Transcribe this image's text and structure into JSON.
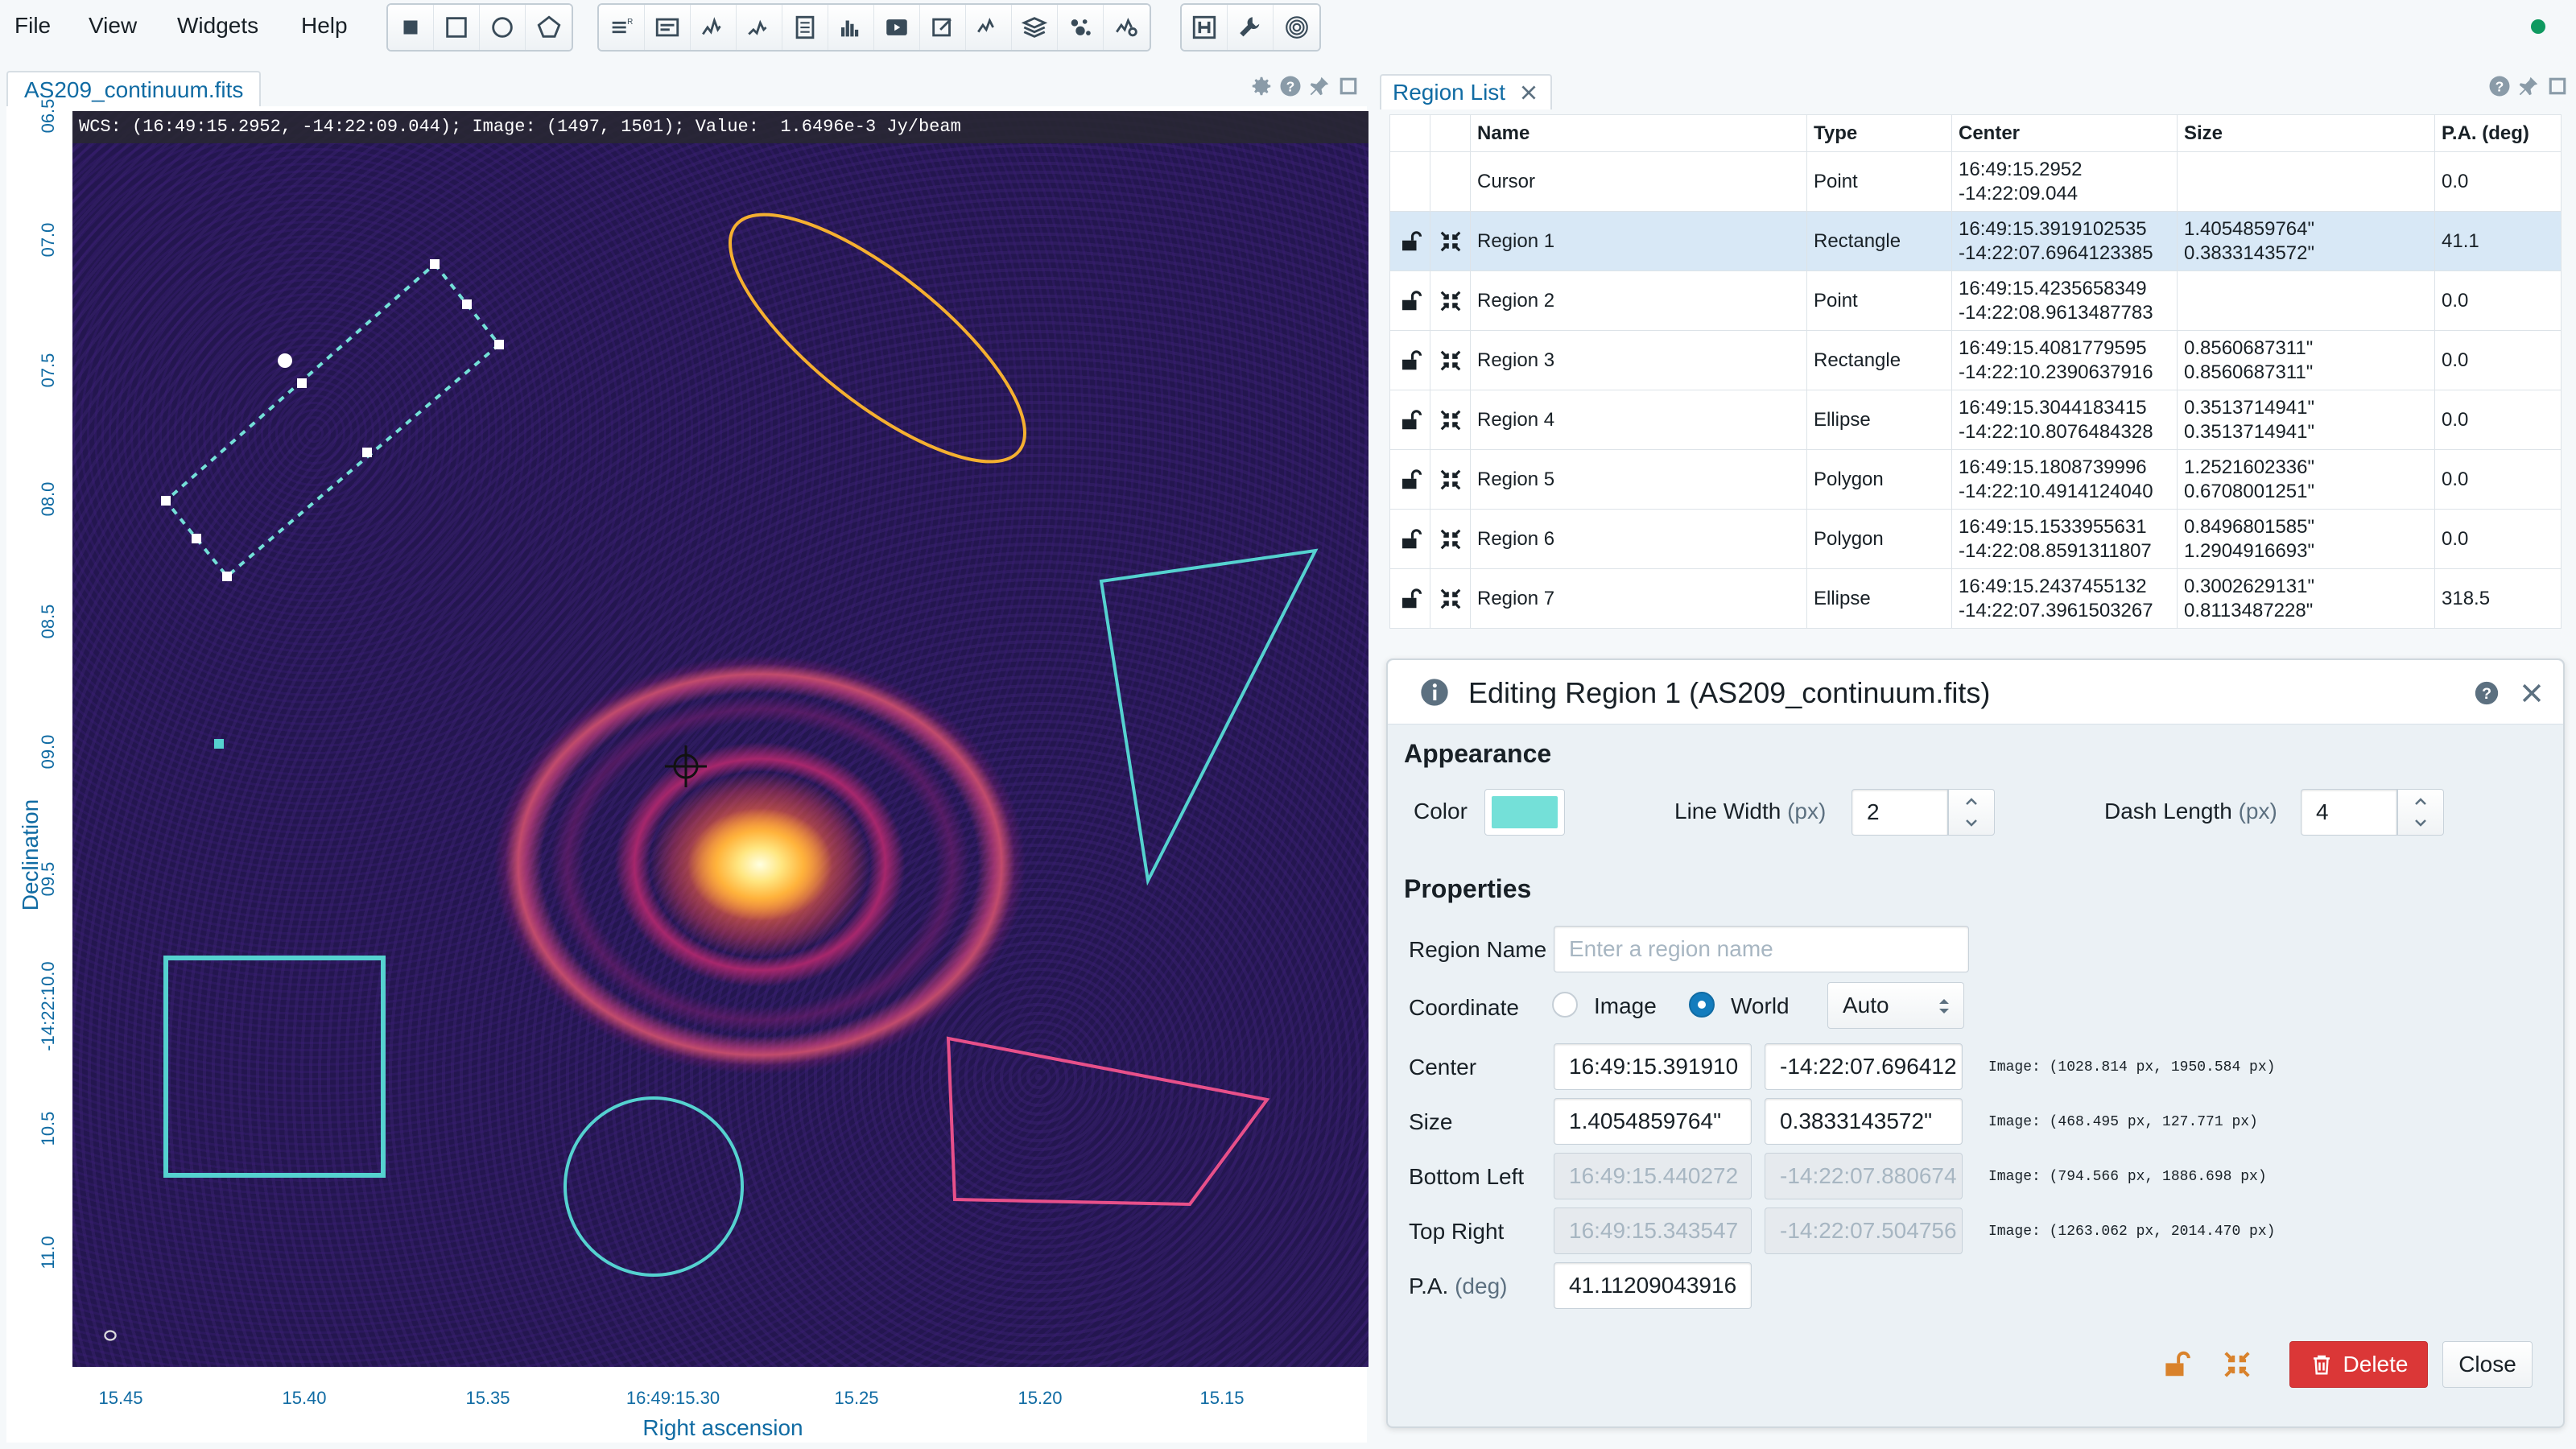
{
  "menubar": {
    "items": [
      "File",
      "View",
      "Widgets",
      "Help"
    ],
    "region_tools": [
      "region-rectangle-icon",
      "region-square-icon",
      "region-ellipse-icon",
      "region-polygon-icon"
    ],
    "widget_tools": [
      "layer-list-icon",
      "log-icon",
      "spatial-profiler-icon",
      "spectral-profiler-icon",
      "statistics-icon",
      "histogram-icon",
      "animator-icon",
      "render-config-icon",
      "stokes-analysis-icon",
      "image-list-icon",
      "catalog-icon",
      "spectral-line-query-icon"
    ],
    "extra_tools": [
      "header-icon",
      "settings-wrench-icon",
      "contour-icon"
    ],
    "status_color": "#0f9960"
  },
  "viewer": {
    "tab_label": "AS209_continuum.fits",
    "wcs_info": "WCS: (16:49:15.2952, -14:22:09.044); Image: (1497, 1501); Value:  1.6496e-3 Jy/beam",
    "y_ticks": [
      "06.5",
      "07.0",
      "07.5",
      "08.0",
      "08.5",
      "09.0",
      "09.5",
      "-14:22:10.0",
      "10.5",
      "11.0"
    ],
    "x_ticks": [
      "15.45",
      "15.40",
      "15.35",
      "16:49:15.30",
      "15.25",
      "15.20",
      "15.15"
    ],
    "y_label": "Declination",
    "x_label": "Right ascension"
  },
  "region_list": {
    "tab_label": "Region List",
    "columns": [
      "Name",
      "Type",
      "Center",
      "Size",
      "P.A. (deg)"
    ],
    "rows": [
      {
        "name": "Cursor",
        "type": "Point",
        "center1": "16:49:15.2952",
        "center2": "-14:22:09.044",
        "size1": "",
        "size2": "",
        "pa": "0.0"
      },
      {
        "name": "Region 1",
        "type": "Rectangle",
        "center1": "16:49:15.3919102535",
        "center2": "-14:22:07.6964123385",
        "size1": "1.4054859764\"",
        "size2": "0.3833143572\"",
        "pa": "41.1"
      },
      {
        "name": "Region 2",
        "type": "Point",
        "center1": "16:49:15.4235658349",
        "center2": "-14:22:08.9613487783",
        "size1": "",
        "size2": "",
        "pa": "0.0"
      },
      {
        "name": "Region 3",
        "type": "Rectangle",
        "center1": "16:49:15.4081779595",
        "center2": "-14:22:10.2390637916",
        "size1": "0.8560687311\"",
        "size2": "0.8560687311\"",
        "pa": "0.0"
      },
      {
        "name": "Region 4",
        "type": "Ellipse",
        "center1": "16:49:15.3044183415",
        "center2": "-14:22:10.8076484328",
        "size1": "0.3513714941\"",
        "size2": "0.3513714941\"",
        "pa": "0.0"
      },
      {
        "name": "Region 5",
        "type": "Polygon",
        "center1": "16:49:15.1808739996",
        "center2": "-14:22:10.4914124040",
        "size1": "1.2521602336\"",
        "size2": "0.6708001251\"",
        "pa": "0.0"
      },
      {
        "name": "Region 6",
        "type": "Polygon",
        "center1": "16:49:15.1533955631",
        "center2": "-14:22:08.8591311807",
        "size1": "0.8496801585\"",
        "size2": "1.2904916693\"",
        "pa": "0.0"
      },
      {
        "name": "Region 7",
        "type": "Ellipse",
        "center1": "16:49:15.2437455132",
        "center2": "-14:22:07.3961503267",
        "size1": "0.3002629131\"",
        "size2": "0.8113487228\"",
        "pa": "318.5"
      }
    ]
  },
  "dialog": {
    "title": "Editing Region 1 (AS209_continuum.fits)",
    "appearance_title": "Appearance",
    "color_label": "Color",
    "color_value": "#74e0d8",
    "line_width_label": "Line Width",
    "line_width_unit": "(px)",
    "line_width_value": "2",
    "dash_length_label": "Dash Length",
    "dash_length_unit": "(px)",
    "dash_length_value": "4",
    "properties_title": "Properties",
    "region_name_label": "Region Name",
    "region_name_placeholder": "Enter a region name",
    "coordinate_label": "Coordinate",
    "coord_image": "Image",
    "coord_world": "World",
    "coord_format": "Auto",
    "center_label": "Center",
    "center_x": "16:49:15.391910",
    "center_y": "-14:22:07.696412",
    "center_image": "Image: (1028.814 px, 1950.584 px)",
    "size_label": "Size",
    "size_x": "1.4054859764\"",
    "size_y": "0.3833143572\"",
    "size_image": "Image: (468.495 px, 127.771 px)",
    "bottom_left_label": "Bottom Left",
    "bottom_left_x": "16:49:15.440272",
    "bottom_left_y": "-14:22:07.880674",
    "bottom_left_image": "Image: (794.566 px, 1886.698 px)",
    "top_right_label": "Top Right",
    "top_right_x": "16:49:15.343547",
    "top_right_y": "-14:22:07.504756",
    "top_right_image": "Image: (1263.062 px, 2014.470 px)",
    "pa_label": "P.A.",
    "pa_unit": "(deg)",
    "pa_value": "41.11209043916",
    "delete_label": "Delete",
    "close_label": "Close"
  }
}
